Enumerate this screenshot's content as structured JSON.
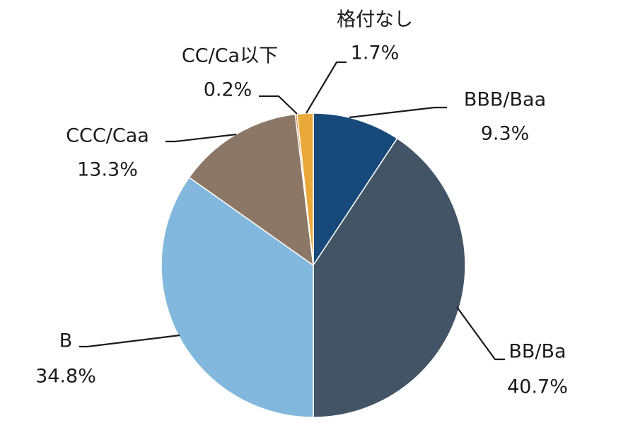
{
  "chart_data": {
    "type": "pie",
    "title": "",
    "start": "12 o'clock",
    "direction": "clockwise",
    "slices": [
      {
        "name": "BBB/Baa",
        "value": 9.3,
        "label": "9.3%",
        "color": "#17497a"
      },
      {
        "name": "BB/Ba",
        "value": 40.7,
        "label": "40.7%",
        "color": "#425466"
      },
      {
        "name": "B",
        "value": 34.8,
        "label": "34.8%",
        "color": "#82b8de"
      },
      {
        "name": "CCC/Caa",
        "value": 13.3,
        "label": "13.3%",
        "color": "#8c7766"
      },
      {
        "name": "CC/Ca以下",
        "value": 0.2,
        "label": "0.2%",
        "color": "#d9743a"
      },
      {
        "name": "格付なし",
        "value": 1.7,
        "label": "1.7%",
        "color": "#e8a93a"
      }
    ]
  }
}
